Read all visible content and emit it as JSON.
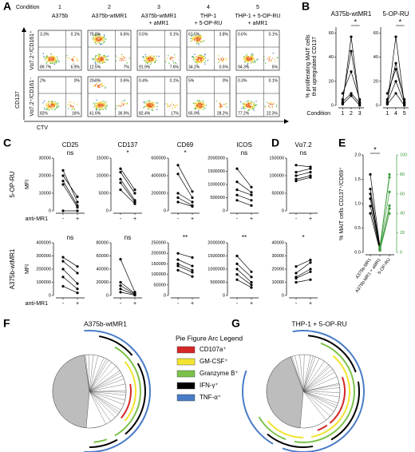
{
  "panel_labels": [
    "A",
    "B",
    "C",
    "D",
    "E",
    "F",
    "G"
  ],
  "panel_a": {
    "condition_label": "Condition",
    "conditions": [
      {
        "number": "1",
        "label": [
          "A375b"
        ]
      },
      {
        "number": "2",
        "label": [
          "A375b-wtMR1"
        ]
      },
      {
        "number": "3",
        "label": [
          "A375b-wtMR1",
          "+ aMR1"
        ]
      },
      {
        "number": "4",
        "label": [
          "THP-1",
          "+ 5-OP-RU"
        ]
      },
      {
        "number": "5",
        "label": [
          "THP-1 + 5-OP-RU",
          "+ aMR1"
        ]
      }
    ],
    "rows": [
      "Vα7.2⁺/CD161⁺",
      "Vα7.2⁺/CD161⁻"
    ],
    "y_label": "CD137",
    "x_label": "CTV",
    "quadrants": [
      [
        [
          "3.3%",
          "0.1%",
          "89.7%",
          "6.9%"
        ],
        [
          "79.8%",
          "6.6%",
          "12.5%",
          "7%"
        ],
        [
          "0.5%",
          "0.1%",
          "91.9%",
          "7.6%"
        ],
        [
          "61.5%",
          "3.8%",
          "34.2%",
          "0.5%"
        ],
        [
          "0.6%",
          "0.1%",
          "94.3%",
          "5%"
        ]
      ],
      [
        [
          "2%",
          "0%",
          "82%",
          "16%"
        ],
        [
          "20.8%",
          "0.6%",
          "41.6%",
          "36.9%"
        ],
        [
          "0.4%",
          "0.1%",
          "82.4%",
          "17%"
        ],
        [
          "5%",
          "0%",
          "65.9%",
          "28.2%"
        ],
        [
          "0.3%",
          "0.1%",
          "77.2%",
          "22.3%"
        ]
      ]
    ]
  },
  "chart_data": [
    {
      "type": "paired",
      "title": "A375b-wtMR1",
      "significance": "*",
      "ylabel": [
        "% proliferating MAIT cells",
        "that upregulated CD137"
      ],
      "xlabel": "Condition",
      "categories": [
        "1",
        "2",
        "3"
      ],
      "ylim": [
        0,
        65
      ],
      "yticks": [
        0,
        20,
        40,
        60
      ],
      "color": "#000000",
      "values": [
        [
          2,
          57,
          1
        ],
        [
          5,
          45,
          3
        ],
        [
          10,
          28,
          5
        ],
        [
          3,
          10,
          2
        ],
        [
          1,
          8,
          0
        ]
      ]
    },
    {
      "type": "paired",
      "title": "5-OP-RU",
      "significance": "*",
      "categories": [
        "1",
        "4",
        "5"
      ],
      "ylim": [
        0,
        65
      ],
      "yticks": [
        0,
        20,
        40,
        60
      ],
      "color": "#000000",
      "values": [
        [
          2,
          57,
          1
        ],
        [
          5,
          35,
          3
        ],
        [
          10,
          30,
          5
        ],
        [
          3,
          20,
          2
        ],
        [
          1,
          10,
          0
        ]
      ]
    },
    {
      "type": "paired",
      "title": "CD25",
      "significance": "ns",
      "row_label": "5-OP-RU",
      "ylabel": "MFI",
      "xlabel": "anti-MR1",
      "categories": [
        "-",
        "+"
      ],
      "ylim": [
        0,
        30000
      ],
      "yticks": [
        0,
        10000,
        20000,
        30000
      ],
      "color": "#000000",
      "values": [
        [
          23000,
          5000
        ],
        [
          20000,
          8000
        ],
        [
          17000,
          3000
        ],
        [
          15000,
          2000
        ],
        [
          0,
          0
        ]
      ]
    },
    {
      "type": "paired",
      "title": "CD137",
      "significance": "*",
      "categories": [
        "-",
        "+"
      ],
      "ylim": [
        0,
        15000
      ],
      "yticks": [
        0,
        5000,
        10000,
        15000
      ],
      "color": "#000000",
      "values": [
        [
          12000,
          6000
        ],
        [
          11000,
          5000
        ],
        [
          9000,
          3000
        ],
        [
          8000,
          2500
        ],
        [
          6000,
          2000
        ]
      ]
    },
    {
      "type": "paired",
      "title": "CD69",
      "significance": "*",
      "categories": [
        "-",
        "+"
      ],
      "ylim": [
        0,
        600000
      ],
      "yticks": [
        0,
        200000,
        400000,
        600000
      ],
      "color": "#000000",
      "values": [
        [
          520000,
          220000
        ],
        [
          420000,
          150000
        ],
        [
          200000,
          100000
        ],
        [
          150000,
          60000
        ],
        [
          100000,
          50000
        ]
      ]
    },
    {
      "type": "paired",
      "title": "ICOS",
      "significance": "ns",
      "categories": [
        "-",
        "+"
      ],
      "ylim": [
        0,
        2000000
      ],
      "yticks": [
        0,
        500000,
        1000000,
        1500000,
        2000000
      ],
      "color": "#000000",
      "values": [
        [
          1600000,
          900000
        ],
        [
          1100000,
          700000
        ],
        [
          800000,
          600000
        ],
        [
          600000,
          400000
        ],
        [
          400000,
          200000
        ]
      ]
    },
    {
      "type": "paired",
      "title": "Vα7.2",
      "significance": "ns",
      "categories": [
        "-",
        "+"
      ],
      "ylim": [
        0,
        150000
      ],
      "yticks": [
        0,
        50000,
        100000,
        150000
      ],
      "color": "#000000",
      "values": [
        [
          130000,
          125000
        ],
        [
          110000,
          120000
        ],
        [
          100000,
          110000
        ],
        [
          90000,
          100000
        ],
        [
          85000,
          95000
        ]
      ]
    },
    {
      "type": "paired",
      "significance": "ns",
      "row_label": "A375b-wtMR1",
      "ylabel": "MFI",
      "xlabel": "anti-MR1",
      "categories": [
        "-",
        "+"
      ],
      "ylim": [
        0,
        400000
      ],
      "yticks": [
        0,
        100000,
        200000,
        300000,
        400000
      ],
      "color": "#000000",
      "values": [
        [
          290000,
          220000
        ],
        [
          260000,
          170000
        ],
        [
          200000,
          90000
        ],
        [
          140000,
          50000
        ],
        [
          70000,
          20000
        ]
      ]
    },
    {
      "type": "paired",
      "significance": "ns",
      "categories": [
        "-",
        "+"
      ],
      "ylim": [
        0,
        80000
      ],
      "yticks": [
        0,
        20000,
        40000,
        60000,
        80000
      ],
      "color": "#000000",
      "values": [
        [
          55000,
          5000
        ],
        [
          20000,
          3000
        ],
        [
          15000,
          2000
        ],
        [
          10000,
          1000
        ],
        [
          5000,
          500
        ]
      ]
    },
    {
      "type": "paired",
      "significance": "**",
      "categories": [
        "-",
        "+"
      ],
      "ylim": [
        0,
        250000
      ],
      "yticks": [
        0,
        50000,
        100000,
        150000,
        200000,
        250000
      ],
      "color": "#000000",
      "values": [
        [
          200000,
          180000
        ],
        [
          170000,
          140000
        ],
        [
          150000,
          120000
        ],
        [
          140000,
          110000
        ],
        [
          120000,
          90000
        ]
      ]
    },
    {
      "type": "paired",
      "significance": "**",
      "categories": [
        "-",
        "+"
      ],
      "ylim": [
        0,
        2000000
      ],
      "yticks": [
        0,
        500000,
        1000000,
        1500000,
        2000000
      ],
      "color": "#000000",
      "values": [
        [
          1500000,
          900000
        ],
        [
          1200000,
          700000
        ],
        [
          1000000,
          500000
        ],
        [
          800000,
          400000
        ],
        [
          600000,
          300000
        ]
      ]
    },
    {
      "type": "paired",
      "significance": "*",
      "categories": [
        "-",
        "+"
      ],
      "ylim": [
        0,
        40000
      ],
      "yticks": [
        0,
        10000,
        20000,
        30000,
        40000
      ],
      "color": "#000000",
      "values": [
        [
          22000,
          27000
        ],
        [
          17000,
          25000
        ],
        [
          14000,
          20000
        ],
        [
          13000,
          18000
        ],
        [
          10000,
          12000
        ]
      ]
    },
    {
      "type": "paired",
      "significance": "*",
      "ylabel": "% MAIT cells CD137⁺/CD69⁺",
      "categories": [
        "A375b-MR1",
        "A375b-MR1 + aMR1",
        "5-OP-RU"
      ],
      "ylim": [
        0,
        2
      ],
      "yticks": [
        {
          "value": 0,
          "label": "0.0"
        },
        0.5,
        {
          "value": 1,
          "label": "1.0"
        },
        1.5,
        {
          "value": 2,
          "label": "2.0"
        }
      ],
      "y2lim": [
        0,
        100
      ],
      "y2ticks": [
        0,
        20,
        40,
        60,
        80,
        100
      ],
      "y2_color": "#3a9a3a",
      "series": [
        {
          "color": "#000000",
          "values": [
            [
              1.6,
              0.12,
              null
            ],
            [
              1.3,
              0.1,
              null
            ],
            [
              1.2,
              0.08,
              null
            ],
            [
              1.1,
              0.06,
              null
            ],
            [
              0.95,
              0.05,
              null
            ],
            [
              0.8,
              0.04,
              null
            ]
          ]
        },
        {
          "color": "#3a9a3a",
          "axis": "y2",
          "values": [
            [
              null,
              6,
              80
            ],
            [
              null,
              5,
              77
            ],
            [
              null,
              4,
              62
            ],
            [
              null,
              3,
              48
            ],
            [
              null,
              2,
              45
            ],
            [
              null,
              2,
              40
            ]
          ]
        }
      ]
    }
  ],
  "pies": {
    "titles": [
      "A375b-wtMR1",
      "THP-1 + 5-OP-RU"
    ],
    "legend_title": "Pie Figure Arc Legend",
    "legend": [
      {
        "name": "CD107a⁺",
        "color": "#d62728"
      },
      {
        "name": "GM-CSF⁺",
        "color": "#f2e430"
      },
      {
        "name": "Granzyme B⁺",
        "color": "#7cc24a"
      },
      {
        "name": "IFN-γ⁺",
        "color": "#000000"
      },
      {
        "name": "TNF-α⁺",
        "color": "#4a7cc7"
      }
    ]
  }
}
